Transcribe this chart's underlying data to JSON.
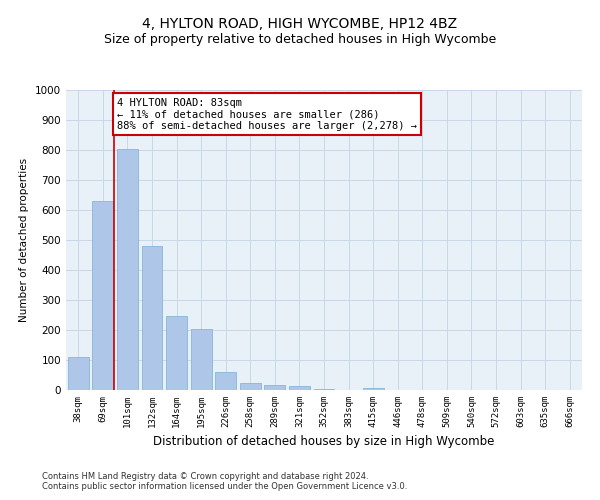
{
  "title": "4, HYLTON ROAD, HIGH WYCOMBE, HP12 4BZ",
  "subtitle": "Size of property relative to detached houses in High Wycombe",
  "xlabel": "Distribution of detached houses by size in High Wycombe",
  "ylabel": "Number of detached properties",
  "footer_line1": "Contains HM Land Registry data © Crown copyright and database right 2024.",
  "footer_line2": "Contains public sector information licensed under the Open Government Licence v3.0.",
  "categories": [
    "38sqm",
    "69sqm",
    "101sqm",
    "132sqm",
    "164sqm",
    "195sqm",
    "226sqm",
    "258sqm",
    "289sqm",
    "321sqm",
    "352sqm",
    "383sqm",
    "415sqm",
    "446sqm",
    "478sqm",
    "509sqm",
    "540sqm",
    "572sqm",
    "603sqm",
    "635sqm",
    "666sqm"
  ],
  "values": [
    110,
    630,
    805,
    480,
    248,
    205,
    60,
    25,
    17,
    12,
    5,
    0,
    8,
    0,
    0,
    0,
    0,
    0,
    0,
    0,
    0
  ],
  "bar_color": "#aec6e8",
  "bar_edge_color": "#7bafd4",
  "ylim": [
    0,
    1000
  ],
  "yticks": [
    0,
    100,
    200,
    300,
    400,
    500,
    600,
    700,
    800,
    900,
    1000
  ],
  "red_line_x": 1.45,
  "annotation_text": "4 HYLTON ROAD: 83sqm\n← 11% of detached houses are smaller (286)\n88% of semi-detached houses are larger (2,278) →",
  "annotation_box_color": "#ffffff",
  "annotation_box_edge": "#cc0000",
  "background_color": "#ffffff",
  "plot_bg_color": "#e8f0f8",
  "grid_color": "#c8d8e8",
  "title_fontsize": 10,
  "subtitle_fontsize": 9,
  "annotation_fontsize": 7.5
}
